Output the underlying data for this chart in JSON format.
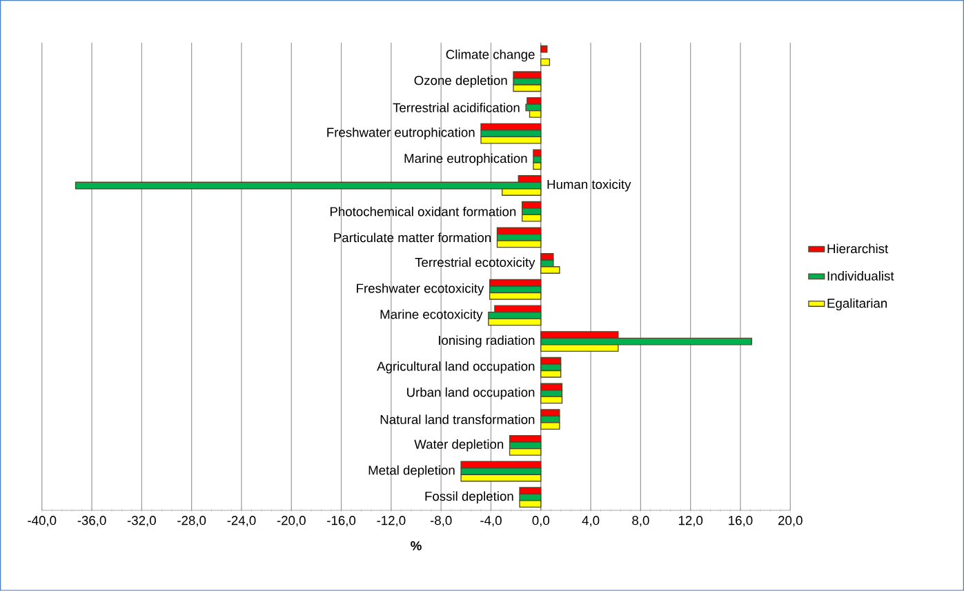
{
  "chart_data": {
    "type": "bar",
    "orientation": "horizontal",
    "categories": [
      "Climate change",
      "Ozone depletion",
      "Terrestrial acidification",
      "Freshwater eutrophication",
      "Marine eutrophication",
      "Human toxicity",
      "Photochemical oxidant formation",
      "Particulate matter formation",
      "Terrestrial ecotoxicity",
      "Freshwater ecotoxicity",
      "Marine ecotoxicity",
      "Ionising radiation",
      "Agricultural land occupation",
      "Urban land occupation",
      "Natural land transformation",
      "Water depletion",
      "Metal depletion",
      "Fossil depletion"
    ],
    "series": [
      {
        "name": "Hierarchist",
        "color": "#ff0000",
        "values": [
          0.5,
          -2.2,
          -1.1,
          -4.8,
          -0.6,
          -1.8,
          -1.5,
          -3.5,
          1.0,
          -4.1,
          -3.7,
          6.2,
          1.6,
          1.7,
          1.5,
          -2.5,
          -6.4,
          -1.7
        ]
      },
      {
        "name": "Individualist",
        "color": "#00b050",
        "values": [
          null,
          -2.2,
          -1.2,
          -4.8,
          -0.6,
          -37.3,
          -1.5,
          -3.5,
          1.0,
          -4.1,
          -4.2,
          16.9,
          1.6,
          1.7,
          1.5,
          -2.5,
          -6.4,
          -1.7
        ]
      },
      {
        "name": "Egalitarian",
        "color": "#ffff00",
        "values": [
          0.7,
          -2.2,
          -0.9,
          -4.8,
          -0.6,
          -3.1,
          -1.5,
          -3.5,
          1.5,
          -4.1,
          -4.2,
          6.2,
          1.6,
          1.7,
          1.5,
          -2.5,
          -6.4,
          -1.7
        ]
      }
    ],
    "xlabel": "%",
    "xlim": [
      -40,
      20
    ],
    "xticks": [
      {
        "value": -40,
        "label": "-40,0"
      },
      {
        "value": -36,
        "label": "-36,0"
      },
      {
        "value": -32,
        "label": "-32,0"
      },
      {
        "value": -28,
        "label": "-28,0"
      },
      {
        "value": -24,
        "label": "-24,0"
      },
      {
        "value": -20,
        "label": "-20,0"
      },
      {
        "value": -16,
        "label": "-16,0"
      },
      {
        "value": -12,
        "label": "-12,0"
      },
      {
        "value": -8,
        "label": "-8,0"
      },
      {
        "value": -4,
        "label": "-4,0"
      },
      {
        "value": 0,
        "label": "0,0"
      },
      {
        "value": 4,
        "label": "4,0"
      },
      {
        "value": 8,
        "label": "8,0"
      },
      {
        "value": 12,
        "label": "12,0"
      },
      {
        "value": 16,
        "label": "16,0"
      },
      {
        "value": 20,
        "label": "20,0"
      }
    ],
    "grid": "x",
    "legend": "right"
  }
}
